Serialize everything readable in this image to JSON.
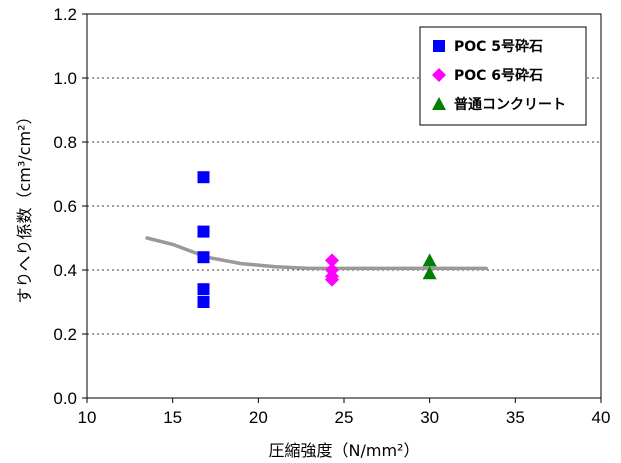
{
  "chart_data": {
    "type": "scatter",
    "title": "",
    "xlabel": "圧縮強度（N/mm²）",
    "ylabel": "すりへり係数（cm³/cm²）",
    "xlim": [
      10,
      40
    ],
    "ylim": [
      0,
      1.2
    ],
    "x_ticks": [
      "10",
      "15",
      "20",
      "25",
      "30",
      "35",
      "40"
    ],
    "y_ticks": [
      "0.0",
      "0.2",
      "0.4",
      "0.6",
      "0.8",
      "1.0",
      "1.2"
    ],
    "grid": "horizontal-dotted",
    "legend_position": "top-right",
    "series": [
      {
        "name": "POC 5号砕石",
        "marker": "square",
        "color": "#0000ff",
        "points": [
          [
            16.8,
            0.69
          ],
          [
            16.8,
            0.52
          ],
          [
            16.8,
            0.44
          ],
          [
            16.8,
            0.34
          ],
          [
            16.8,
            0.3
          ]
        ]
      },
      {
        "name": "POC 6号砕石",
        "marker": "diamond",
        "color": "#ff00ff",
        "points": [
          [
            24.3,
            0.43
          ],
          [
            24.3,
            0.4
          ],
          [
            24.3,
            0.38
          ],
          [
            24.3,
            0.37
          ]
        ]
      },
      {
        "name": "普通コンクリート",
        "marker": "triangle",
        "color": "#008000",
        "points": [
          [
            30.0,
            0.43
          ],
          [
            30.0,
            0.39
          ]
        ]
      }
    ],
    "trend_line": {
      "color": "#999999",
      "points": [
        [
          13.5,
          0.5
        ],
        [
          15.0,
          0.48
        ],
        [
          17.0,
          0.44
        ],
        [
          19.0,
          0.42
        ],
        [
          21.0,
          0.41
        ],
        [
          23.0,
          0.405
        ],
        [
          25.0,
          0.405
        ],
        [
          30.0,
          0.405
        ],
        [
          33.3,
          0.405
        ]
      ]
    }
  }
}
